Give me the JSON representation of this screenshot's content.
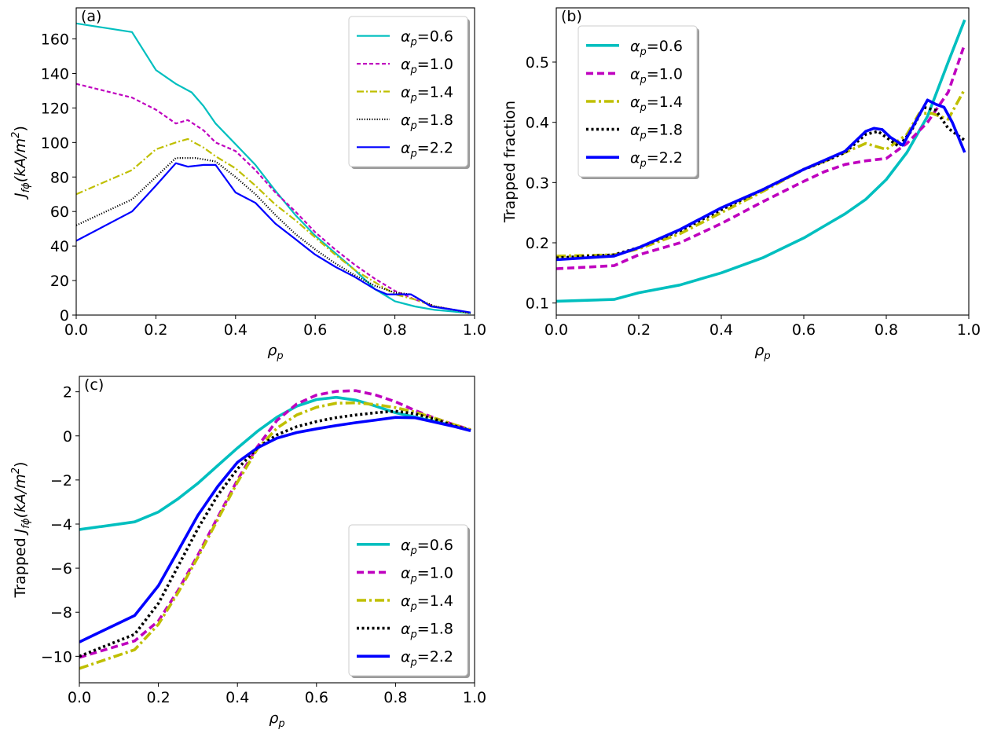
{
  "chart_data": [
    {
      "type": "line",
      "panel_label": "(a)",
      "xlabel_base": "ρ",
      "xlabel_sub": "p",
      "ylabel_base": "J",
      "ylabel_sub": "fϕ",
      "ylabel_unit": "(kA/m",
      "ylabel_unit_sup": "2",
      "ylabel_unit_close": ")",
      "xlim": [
        0,
        1
      ],
      "ylim": [
        0,
        178
      ],
      "xticks": [
        "0.0",
        "0.2",
        "0.4",
        "0.6",
        "0.8",
        "1.0"
      ],
      "yticks": [
        "0",
        "20",
        "40",
        "60",
        "80",
        "100",
        "120",
        "140",
        "160"
      ],
      "legend": "top-right",
      "series": [
        {
          "name": "α_p=0.6",
          "alpha_value": "0.6",
          "color": "#00bfbf",
          "dash": "solid",
          "width": "thin",
          "x": [
            0,
            0.14,
            0.2,
            0.25,
            0.29,
            0.32,
            0.35,
            0.4,
            0.45,
            0.5,
            0.55,
            0.6,
            0.65,
            0.7,
            0.75,
            0.8,
            0.85,
            0.9,
            0.95,
            0.99
          ],
          "y": [
            169,
            164,
            142,
            134,
            129,
            121,
            111,
            99,
            87,
            72,
            58,
            46,
            36,
            26,
            15,
            8,
            5,
            3,
            2,
            1
          ]
        },
        {
          "name": "α_p=1.0",
          "alpha_value": "1.0",
          "color": "#bf00bf",
          "dash": "dash",
          "width": "thin",
          "x": [
            0,
            0.14,
            0.2,
            0.25,
            0.28,
            0.32,
            0.35,
            0.4,
            0.45,
            0.5,
            0.55,
            0.6,
            0.65,
            0.7,
            0.75,
            0.8,
            0.85,
            0.9,
            0.95,
            0.99
          ],
          "y": [
            134,
            126,
            119,
            111,
            113,
            107,
            100,
            95,
            84,
            71,
            60,
            48,
            38,
            29,
            21,
            14,
            9,
            5,
            3,
            1
          ]
        },
        {
          "name": "α_p=1.4",
          "alpha_value": "1.4",
          "color": "#bfbf00",
          "dash": "dashdot",
          "width": "thin",
          "x": [
            0,
            0.14,
            0.2,
            0.25,
            0.28,
            0.32,
            0.35,
            0.4,
            0.45,
            0.5,
            0.55,
            0.6,
            0.65,
            0.7,
            0.75,
            0.8,
            0.85,
            0.9,
            0.95,
            0.99
          ],
          "y": [
            70,
            84,
            96,
            100,
            102,
            97,
            92,
            85,
            75,
            64,
            55,
            45,
            35,
            26,
            19,
            12,
            9,
            5,
            3,
            1
          ]
        },
        {
          "name": "α_p=1.8",
          "alpha_value": "1.8",
          "color": "#000000",
          "dash": "dot",
          "width": "thin",
          "x": [
            0,
            0.14,
            0.2,
            0.25,
            0.3,
            0.35,
            0.4,
            0.45,
            0.5,
            0.55,
            0.6,
            0.65,
            0.7,
            0.75,
            0.8,
            0.84,
            0.87,
            0.9,
            0.95,
            0.99
          ],
          "y": [
            52,
            67,
            80,
            91,
            91,
            89,
            80,
            70,
            58,
            47,
            38,
            30,
            23,
            17,
            13,
            12,
            8,
            5,
            3,
            1
          ]
        },
        {
          "name": "α_p=2.2",
          "alpha_value": "2.2",
          "color": "#0000ff",
          "dash": "solid",
          "width": "thin",
          "x": [
            0,
            0.14,
            0.2,
            0.25,
            0.28,
            0.32,
            0.35,
            0.4,
            0.45,
            0.5,
            0.55,
            0.6,
            0.65,
            0.7,
            0.75,
            0.78,
            0.81,
            0.84,
            0.87,
            0.89,
            0.95,
            0.99
          ],
          "y": [
            43,
            60,
            75,
            88,
            86,
            87,
            87,
            71,
            65,
            53,
            44,
            35,
            28,
            22,
            15,
            12,
            12,
            12,
            8,
            5,
            3,
            1.5
          ]
        }
      ]
    },
    {
      "type": "line",
      "panel_label": "(b)",
      "xlabel_base": "ρ",
      "xlabel_sub": "p",
      "ylabel_text": "Trapped fraction",
      "xlim": [
        0,
        1
      ],
      "ylim": [
        0.08,
        0.59
      ],
      "xticks": [
        "0.0",
        "0.2",
        "0.4",
        "0.6",
        "0.8",
        "1.0"
      ],
      "yticks": [
        "0.1",
        "0.2",
        "0.3",
        "0.4",
        "0.5"
      ],
      "legend": "top-left",
      "series": [
        {
          "name": "α_p=0.6",
          "alpha_value": "0.6",
          "color": "#00bfbf",
          "dash": "solid",
          "width": "thick",
          "x": [
            0,
            0.14,
            0.2,
            0.3,
            0.4,
            0.5,
            0.6,
            0.65,
            0.7,
            0.75,
            0.8,
            0.85,
            0.9,
            0.95,
            0.99
          ],
          "y": [
            0.103,
            0.106,
            0.117,
            0.13,
            0.15,
            0.175,
            0.208,
            0.228,
            0.248,
            0.272,
            0.305,
            0.35,
            0.41,
            0.5,
            0.57
          ]
        },
        {
          "name": "α_p=1.0",
          "alpha_value": "1.0",
          "color": "#bf00bf",
          "dash": "dash",
          "width": "thick",
          "x": [
            0,
            0.14,
            0.2,
            0.3,
            0.4,
            0.5,
            0.6,
            0.65,
            0.7,
            0.75,
            0.8,
            0.85,
            0.9,
            0.95,
            0.99
          ],
          "y": [
            0.157,
            0.162,
            0.18,
            0.2,
            0.232,
            0.268,
            0.302,
            0.318,
            0.33,
            0.336,
            0.34,
            0.365,
            0.4,
            0.45,
            0.53
          ]
        },
        {
          "name": "α_p=1.4",
          "alpha_value": "1.4",
          "color": "#bfbf00",
          "dash": "dashdot",
          "width": "thick",
          "x": [
            0,
            0.14,
            0.2,
            0.3,
            0.4,
            0.5,
            0.6,
            0.65,
            0.7,
            0.75,
            0.8,
            0.85,
            0.88,
            0.91,
            0.95,
            0.99
          ],
          "y": [
            0.178,
            0.18,
            0.19,
            0.215,
            0.25,
            0.285,
            0.322,
            0.335,
            0.35,
            0.365,
            0.355,
            0.38,
            0.415,
            0.415,
            0.405,
            0.455
          ]
        },
        {
          "name": "α_p=1.8",
          "alpha_value": "1.8",
          "color": "#000000",
          "dash": "dot",
          "width": "thick",
          "x": [
            0,
            0.14,
            0.2,
            0.3,
            0.4,
            0.5,
            0.6,
            0.65,
            0.7,
            0.75,
            0.78,
            0.8,
            0.83,
            0.86,
            0.89,
            0.92,
            0.95,
            0.99
          ],
          "y": [
            0.175,
            0.18,
            0.192,
            0.22,
            0.255,
            0.288,
            0.322,
            0.335,
            0.35,
            0.38,
            0.385,
            0.375,
            0.36,
            0.385,
            0.425,
            0.42,
            0.39,
            0.37
          ]
        },
        {
          "name": "α_p=2.2",
          "alpha_value": "2.2",
          "color": "#0000ff",
          "dash": "solid",
          "width": "thick",
          "x": [
            0,
            0.14,
            0.2,
            0.3,
            0.4,
            0.5,
            0.6,
            0.65,
            0.7,
            0.75,
            0.77,
            0.79,
            0.81,
            0.84,
            0.87,
            0.9,
            0.92,
            0.94,
            0.96,
            0.99
          ],
          "y": [
            0.172,
            0.178,
            0.192,
            0.222,
            0.258,
            0.288,
            0.322,
            0.337,
            0.352,
            0.385,
            0.39,
            0.388,
            0.375,
            0.362,
            0.4,
            0.437,
            0.43,
            0.425,
            0.4,
            0.35
          ]
        }
      ]
    },
    {
      "type": "line",
      "panel_label": "(c)",
      "xlabel_base": "ρ",
      "xlabel_sub": "p",
      "ylabel_prefix": "Trapped ",
      "ylabel_base": "J",
      "ylabel_sub": "fϕ",
      "ylabel_unit": "(kA/m",
      "ylabel_unit_sup": "2",
      "ylabel_unit_close": ")",
      "xlim": [
        0,
        1
      ],
      "ylim": [
        -11.2,
        2.7
      ],
      "xticks": [
        "0.0",
        "0.2",
        "0.4",
        "0.6",
        "0.8",
        "1.0"
      ],
      "yticks": [
        "−10",
        "−8",
        "−6",
        "−4",
        "−2",
        "0",
        "2"
      ],
      "ytick_values": [
        -10,
        -8,
        -6,
        -4,
        -2,
        0,
        2
      ],
      "legend": "lower-right",
      "series": [
        {
          "name": "α_p=0.6",
          "alpha_value": "0.6",
          "color": "#00bfbf",
          "dash": "solid",
          "width": "thick",
          "x": [
            0,
            0.14,
            0.2,
            0.25,
            0.3,
            0.35,
            0.4,
            0.45,
            0.5,
            0.55,
            0.6,
            0.65,
            0.7,
            0.75,
            0.8,
            0.85,
            0.9,
            0.95,
            0.99
          ],
          "y": [
            -4.25,
            -3.9,
            -3.45,
            -2.85,
            -2.15,
            -1.35,
            -0.55,
            0.2,
            0.85,
            1.35,
            1.65,
            1.75,
            1.62,
            1.35,
            1.05,
            0.85,
            0.65,
            0.45,
            0.25
          ]
        },
        {
          "name": "α_p=1.0",
          "alpha_value": "1.0",
          "color": "#bf00bf",
          "dash": "dash",
          "width": "thick",
          "x": [
            0,
            0.14,
            0.2,
            0.25,
            0.3,
            0.35,
            0.4,
            0.45,
            0.5,
            0.55,
            0.6,
            0.65,
            0.7,
            0.75,
            0.8,
            0.85,
            0.9,
            0.95,
            0.99
          ],
          "y": [
            -10.05,
            -9.3,
            -8.4,
            -7.0,
            -5.4,
            -3.7,
            -2.0,
            -0.5,
            0.7,
            1.45,
            1.85,
            2.02,
            2.05,
            1.85,
            1.55,
            1.15,
            0.8,
            0.5,
            0.28
          ]
        },
        {
          "name": "α_p=1.4",
          "alpha_value": "1.4",
          "color": "#bfbf00",
          "dash": "dashdot",
          "width": "thick",
          "x": [
            0,
            0.14,
            0.2,
            0.25,
            0.3,
            0.35,
            0.4,
            0.45,
            0.5,
            0.55,
            0.6,
            0.65,
            0.7,
            0.75,
            0.8,
            0.85,
            0.9,
            0.95,
            0.99
          ],
          "y": [
            -10.55,
            -9.7,
            -8.55,
            -7.1,
            -5.5,
            -3.8,
            -2.1,
            -0.6,
            0.35,
            0.95,
            1.3,
            1.48,
            1.5,
            1.42,
            1.28,
            1.08,
            0.8,
            0.5,
            0.28
          ]
        },
        {
          "name": "α_p=1.8",
          "alpha_value": "1.8",
          "color": "#000000",
          "dash": "dot",
          "width": "thick",
          "x": [
            0,
            0.14,
            0.2,
            0.25,
            0.3,
            0.35,
            0.4,
            0.45,
            0.5,
            0.55,
            0.6,
            0.65,
            0.7,
            0.75,
            0.8,
            0.85,
            0.9,
            0.95,
            0.99
          ],
          "y": [
            -10.0,
            -9.0,
            -7.6,
            -5.9,
            -4.2,
            -2.7,
            -1.5,
            -0.55,
            0.05,
            0.42,
            0.65,
            0.83,
            0.95,
            1.05,
            1.12,
            1.0,
            0.75,
            0.45,
            0.25
          ]
        },
        {
          "name": "α_p=2.2",
          "alpha_value": "2.2",
          "color": "#0000ff",
          "dash": "solid",
          "width": "thick",
          "x": [
            0,
            0.14,
            0.2,
            0.25,
            0.3,
            0.35,
            0.4,
            0.45,
            0.5,
            0.55,
            0.6,
            0.65,
            0.7,
            0.75,
            0.8,
            0.85,
            0.9,
            0.95,
            0.99
          ],
          "y": [
            -9.35,
            -8.15,
            -6.8,
            -5.2,
            -3.6,
            -2.3,
            -1.2,
            -0.55,
            -0.1,
            0.15,
            0.32,
            0.47,
            0.6,
            0.72,
            0.84,
            0.82,
            0.62,
            0.42,
            0.23
          ]
        }
      ]
    }
  ]
}
